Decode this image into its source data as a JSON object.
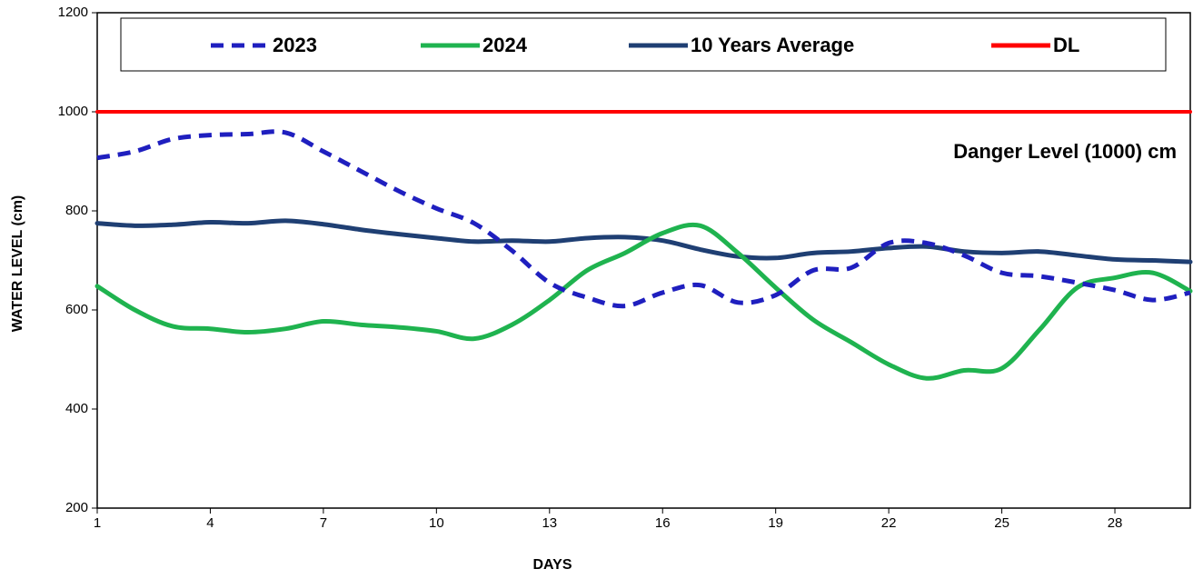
{
  "chart_data": {
    "type": "line",
    "annotation": "Danger Level (1000) cm",
    "x_label": "DAYS",
    "y_label": "WATER LEVEL (cm)",
    "x": [
      1,
      2,
      3,
      4,
      5,
      6,
      7,
      8,
      9,
      10,
      11,
      12,
      13,
      14,
      15,
      16,
      17,
      18,
      19,
      20,
      21,
      22,
      23,
      24,
      25,
      26,
      27,
      28,
      29,
      30
    ],
    "xlim": [
      1,
      30
    ],
    "xticks": [
      1,
      4,
      7,
      10,
      13,
      16,
      19,
      22,
      25,
      28
    ],
    "ylim": [
      200,
      1200
    ],
    "yticks": [
      200,
      400,
      600,
      800,
      1000,
      1200
    ],
    "legend_position": "top",
    "series": [
      {
        "name": "2023",
        "color": "#1f1fbf",
        "dashed": true,
        "values": [
          907,
          920,
          945,
          953,
          955,
          958,
          920,
          880,
          840,
          805,
          775,
          720,
          655,
          625,
          608,
          635,
          650,
          615,
          630,
          680,
          685,
          735,
          735,
          710,
          675,
          668,
          655,
          640,
          620,
          635
        ]
      },
      {
        "name": "2024",
        "color": "#1fb34f",
        "dashed": false,
        "values": [
          648,
          600,
          567,
          562,
          555,
          562,
          577,
          570,
          565,
          557,
          542,
          570,
          620,
          680,
          715,
          755,
          770,
          715,
          645,
          580,
          535,
          490,
          462,
          478,
          482,
          560,
          645,
          665,
          675,
          638
        ]
      },
      {
        "name": "10 Years Average",
        "color": "#1f3f73",
        "dashed": false,
        "values": [
          775,
          770,
          772,
          777,
          775,
          780,
          773,
          762,
          753,
          745,
          738,
          740,
          738,
          745,
          747,
          740,
          722,
          708,
          705,
          715,
          718,
          725,
          728,
          718,
          715,
          718,
          710,
          702,
          700,
          697
        ]
      },
      {
        "name": "DL",
        "color": "#ff0000",
        "dashed": false,
        "values": [
          1000,
          1000,
          1000,
          1000,
          1000,
          1000,
          1000,
          1000,
          1000,
          1000,
          1000,
          1000,
          1000,
          1000,
          1000,
          1000,
          1000,
          1000,
          1000,
          1000,
          1000,
          1000,
          1000,
          1000,
          1000,
          1000,
          1000,
          1000,
          1000,
          1000
        ]
      }
    ]
  }
}
